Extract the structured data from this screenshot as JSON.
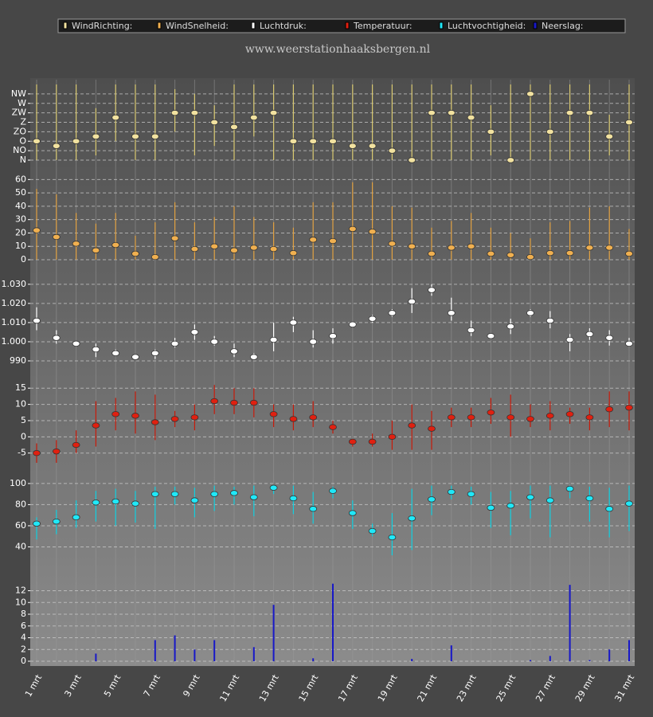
{
  "chart_data": {
    "type": "panels",
    "title": "www.weerstationhaaksbergen.nl",
    "categories": [
      "1 mrt",
      null,
      "3 mrt",
      null,
      "5 mrt",
      null,
      "7 mrt",
      null,
      "9 mrt",
      null,
      "11 mrt",
      null,
      "13 mrt",
      null,
      "15 mrt",
      null,
      "17 mrt",
      null,
      "19 mrt",
      null,
      "21 mrt",
      null,
      "23 mrt",
      null,
      "25 mrt",
      null,
      "27 mrt",
      null,
      "29 mrt",
      null,
      "31 mrt"
    ],
    "grid": true,
    "panels": [
      {
        "name": "WindRichting:",
        "type": "range",
        "color": "#f2e2a0",
        "line_color": "#d8c870",
        "ylim": [
          0,
          8
        ],
        "yticks": [
          {
            "value": 0,
            "label": "N"
          },
          {
            "value": 1,
            "label": "NO"
          },
          {
            "value": 2,
            "label": "O"
          },
          {
            "value": 3,
            "label": "ZO"
          },
          {
            "value": 4,
            "label": "Z"
          },
          {
            "value": 5,
            "label": "ZW"
          },
          {
            "value": 6,
            "label": "W"
          },
          {
            "value": 7,
            "label": "NW"
          }
        ],
        "values": [
          2,
          1.5,
          2,
          2.5,
          4.5,
          2.5,
          2.5,
          5,
          5,
          4,
          3.5,
          4.5,
          5,
          2,
          2,
          2,
          1.5,
          1.5,
          1,
          0,
          5,
          5,
          4.5,
          3,
          0,
          7,
          3,
          5,
          5,
          2.5,
          4
        ],
        "low": [
          0,
          0,
          0,
          0.5,
          2,
          0,
          0,
          3,
          0.5,
          1.5,
          0,
          2.5,
          0,
          0,
          0,
          0,
          0,
          0,
          0,
          0,
          0,
          0,
          0,
          0.5,
          0,
          0,
          0,
          0,
          0,
          0.5,
          0
        ],
        "high": [
          8,
          8,
          8,
          5.5,
          8,
          8,
          8,
          7.5,
          7,
          5.8,
          8,
          8,
          8,
          8,
          8,
          8,
          8,
          8,
          8,
          8,
          8,
          8,
          8,
          5.8,
          8,
          8,
          8,
          8,
          8,
          4.8,
          8
        ]
      },
      {
        "name": "WindSnelheid:",
        "type": "range",
        "color": "#f0b050",
        "line_color": "#e0a040",
        "ylim": [
          0,
          62
        ],
        "yticks": [
          0,
          10,
          20,
          30,
          40,
          50,
          60
        ],
        "values": [
          22,
          17,
          12,
          7,
          11,
          4.5,
          2,
          16,
          8,
          10,
          7,
          9,
          8,
          5,
          15,
          14,
          23,
          21,
          12,
          10,
          4.5,
          9,
          10,
          4.5,
          3.5,
          2,
          5,
          5,
          9,
          9,
          4.5
        ],
        "low": [
          0,
          0,
          0,
          0,
          0,
          0,
          0,
          0,
          0,
          0,
          0,
          0,
          0,
          0,
          0,
          0,
          0,
          0,
          0,
          0,
          0,
          0,
          0,
          0,
          0,
          0,
          0,
          0,
          0,
          0,
          0
        ],
        "high": [
          53,
          49,
          35,
          27,
          35,
          18,
          28,
          43,
          28,
          32,
          40,
          32,
          28,
          24,
          43,
          43,
          58,
          58,
          40,
          39,
          24,
          29,
          35,
          24,
          20,
          16,
          28,
          29,
          39,
          40,
          23
        ]
      },
      {
        "name": "Luchtdruk:",
        "type": "range",
        "color": "#ffffff",
        "line_color": "#ffffff",
        "ylim": [
          985,
          1037
        ],
        "yticks": [
          990,
          {
            "value": 1000,
            "label": "1.000"
          },
          {
            "value": 1010,
            "label": "1.010"
          },
          {
            "value": 1020,
            "label": "1.020"
          },
          {
            "value": 1030,
            "label": "1.030"
          }
        ],
        "values": [
          1011,
          1002,
          999,
          996,
          994,
          992,
          994,
          999,
          1005,
          1000,
          995,
          992,
          1001,
          1010,
          1000,
          1003,
          1009,
          1012,
          1015,
          1021,
          1027,
          1015,
          1006,
          1003,
          1008,
          1015,
          1011,
          1001,
          1004,
          1002,
          999
        ],
        "low": [
          1006,
          999,
          998,
          992,
          993,
          991,
          991,
          997,
          1001,
          998,
          992,
          991,
          995,
          1005,
          997,
          999,
          1008,
          1010,
          1013,
          1015,
          1024,
          1011,
          1003,
          1002,
          1004,
          1013,
          1007,
          995,
          1001,
          998,
          998
        ],
        "high": [
          1018,
          1006,
          1000,
          999,
          996,
          993,
          996,
          1002,
          1009,
          1003,
          999,
          994,
          1010,
          1013,
          1006,
          1007,
          1010,
          1014,
          1017,
          1028,
          1030,
          1023,
          1011,
          1004,
          1012,
          1017,
          1016,
          1004,
          1007,
          1006,
          1002
        ]
      },
      {
        "name": "Temperatuur:",
        "type": "range",
        "color": "#e02010",
        "line_color": "#c81a0a",
        "ylim": [
          -9,
          18
        ],
        "yticks": [
          -5,
          0,
          5,
          10,
          15
        ],
        "values": [
          -5,
          -4.5,
          -2.5,
          3.5,
          7,
          6.5,
          4.5,
          5.5,
          6,
          11,
          10.5,
          10.5,
          7,
          5.5,
          6,
          3,
          -1.5,
          -1.5,
          0,
          3.5,
          2.5,
          6,
          6,
          7.5,
          6,
          5.5,
          6.5,
          7,
          6,
          8.5,
          9
        ],
        "low": [
          -8,
          -8,
          -5,
          -3,
          2,
          1,
          -1,
          3,
          2,
          7,
          7,
          6,
          3,
          2,
          3,
          1,
          -3,
          -3,
          -4,
          -4,
          -4,
          3,
          3,
          4,
          0,
          3,
          2,
          4,
          2,
          3,
          2
        ],
        "high": [
          -2,
          -1,
          2,
          11,
          12,
          14,
          13,
          8,
          10,
          16,
          15,
          15,
          10,
          10,
          11,
          5,
          -1,
          1,
          5,
          10,
          8,
          9,
          9,
          12,
          13,
          10,
          11,
          9,
          9,
          14,
          14
        ]
      },
      {
        "name": "Luchtvochtigheid:",
        "type": "range",
        "color": "#20e8f8",
        "line_color": "#10d0e0",
        "ylim": [
          26,
          109
        ],
        "yticks": [
          40,
          60,
          80,
          100
        ],
        "values": [
          62,
          64,
          68,
          82,
          83,
          81,
          90,
          90,
          84,
          90,
          91,
          87,
          96,
          86,
          76,
          93,
          72,
          55,
          49,
          67,
          85,
          92,
          90,
          77,
          79,
          87,
          84,
          95,
          86,
          76,
          81
        ],
        "low": [
          47,
          52,
          58,
          64,
          60,
          63,
          57,
          80,
          68,
          74,
          80,
          69,
          90,
          71,
          62,
          86,
          57,
          50,
          32,
          37,
          70,
          85,
          80,
          58,
          51,
          67,
          49,
          86,
          64,
          49,
          55
        ],
        "high": [
          68,
          75,
          84,
          93,
          95,
          93,
          97,
          97,
          96,
          98,
          97,
          98,
          98,
          98,
          92,
          97,
          84,
          62,
          72,
          95,
          98,
          98,
          97,
          92,
          93,
          98,
          98,
          98,
          97,
          96,
          98
        ]
      },
      {
        "name": "Neerslag:",
        "type": "bar",
        "color": "#1818c8",
        "ylim": [
          0,
          16
        ],
        "yticks": [
          0,
          2,
          4,
          6,
          8,
          10,
          12
        ],
        "values": [
          0,
          0,
          0,
          1.3,
          0,
          0,
          3.6,
          4.4,
          2,
          3.6,
          0,
          2.4,
          9.6,
          0,
          0.5,
          13.2,
          0,
          0,
          0,
          0.4,
          0,
          2.7,
          0,
          0,
          0,
          0.2,
          0.9,
          13,
          0.2,
          2,
          3.6
        ]
      }
    ]
  }
}
